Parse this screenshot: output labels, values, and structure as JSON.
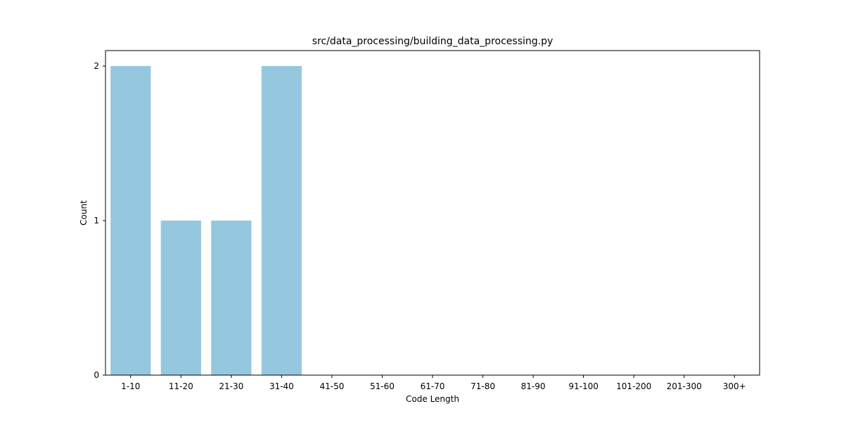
{
  "chart_data": {
    "type": "bar",
    "title": "src/data_processing/building_data_processing.py",
    "xlabel": "Code Length",
    "ylabel": "Count",
    "categories": [
      "1-10",
      "11-20",
      "21-30",
      "31-40",
      "41-50",
      "51-60",
      "61-70",
      "71-80",
      "81-90",
      "91-100",
      "101-200",
      "201-300",
      "300+"
    ],
    "values": [
      2,
      1,
      1,
      2,
      0,
      0,
      0,
      0,
      0,
      0,
      0,
      0,
      0
    ],
    "ylim": [
      0,
      2.1
    ],
    "yticks": [
      0,
      1,
      2
    ],
    "grid": false,
    "legend": false,
    "colors": {
      "bar": "#95c8df",
      "axis": "#000000"
    }
  }
}
